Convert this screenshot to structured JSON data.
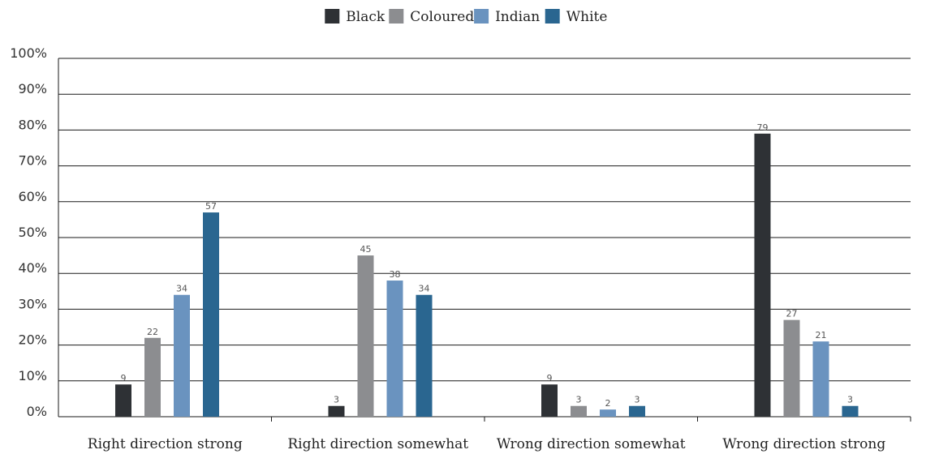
{
  "chart_data": {
    "type": "bar",
    "categories": [
      "Right direction strong",
      "Right direction somewhat",
      "Wrong direction somewhat",
      "Wrong direction strong"
    ],
    "series": [
      {
        "name": "Black",
        "color": "#2e3135",
        "values": [
          9,
          3,
          9,
          79
        ]
      },
      {
        "name": "Coloured",
        "color": "#8c8d90",
        "values": [
          22,
          45,
          3,
          27
        ]
      },
      {
        "name": "Indian",
        "color": "#6a93bf",
        "values": [
          34,
          38,
          2,
          21
        ]
      },
      {
        "name": "White",
        "color": "#2a6690",
        "values": [
          57,
          34,
          3,
          3
        ]
      }
    ],
    "ylim": [
      0,
      100
    ],
    "yticks": [
      "0%",
      "10%",
      "20%",
      "30%",
      "40%",
      "50%",
      "60%",
      "70%",
      "80%",
      "90%",
      "100%"
    ],
    "grid": true,
    "legend_position": "top-center"
  }
}
